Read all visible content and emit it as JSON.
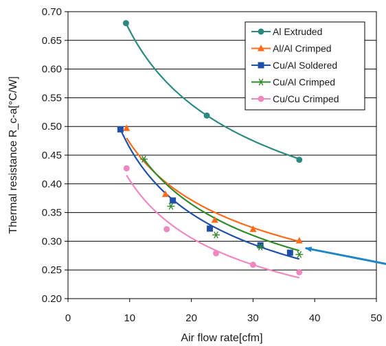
{
  "chart_data": {
    "type": "scatter",
    "xlabel": "Air flow rate[cfm]",
    "ylabel": "Thermal resistance R_c-a[°C/W]",
    "xlim": [
      0,
      50
    ],
    "ylim": [
      0.2,
      0.7
    ],
    "x_ticks": [
      "0",
      "10",
      "20",
      "30",
      "40",
      "50"
    ],
    "y_ticks": [
      "0.20",
      "0.25",
      "0.30",
      "0.35",
      "0.40",
      "0.45",
      "0.50",
      "0.55",
      "0.60",
      "0.65",
      "0.70"
    ],
    "grid": "horizontal",
    "legend_position": "top-right",
    "series": [
      {
        "name": "Al Extruded",
        "color": "#2a8a80",
        "marker": "circle",
        "x": [
          9.4,
          22.5,
          37.5
        ],
        "y": [
          0.68,
          0.519,
          0.442
        ],
        "fit_x": [
          9.4,
          37.5
        ],
        "fit_k": 0.68,
        "fit_b": 0.309
      },
      {
        "name": "Al/Al Crimped",
        "color": "#ff6a18",
        "marker": "triangle",
        "x": [
          9.5,
          15.8,
          23.8,
          30.0,
          37.5
        ],
        "y": [
          0.497,
          0.382,
          0.337,
          0.321,
          0.301
        ],
        "fit_x": [
          9.5,
          37.5
        ],
        "fit_k": 0.48,
        "fit_b": 0.343
      },
      {
        "name": "Cu/Al Soldered",
        "color": "#1f4fa8",
        "marker": "square",
        "x": [
          8.5,
          17.0,
          23.0,
          31.2,
          36.0
        ],
        "y": [
          0.495,
          0.371,
          0.322,
          0.293,
          0.28
        ],
        "fit_x": [
          8.5,
          37.5
        ],
        "fit_k": 0.495,
        "fit_b": 0.411
      },
      {
        "name": "Cu/Al Crimped",
        "color": "#2f8a2a",
        "marker": "star",
        "x": [
          12.3,
          16.7,
          24.0,
          31.2,
          37.5
        ],
        "y": [
          0.443,
          0.361,
          0.311,
          0.29,
          0.277
        ],
        "fit_x": [
          12.3,
          37.5
        ],
        "fit_k": 0.443,
        "fit_b": 0.4
      },
      {
        "name": "Cu/Cu Crimped",
        "color": "#ee88c0",
        "marker": "circle",
        "x": [
          9.5,
          16.0,
          24.0,
          30.0,
          37.5
        ],
        "y": [
          0.427,
          0.321,
          0.279,
          0.259,
          0.246
        ],
        "fit_x": [
          9.5,
          37.5
        ],
        "fit_k": 0.415,
        "fit_b": 0.41
      }
    ],
    "annotation_arrow": {
      "color": "#1e86c8",
      "from": [
        57.5,
        0.248
      ],
      "to": [
        38.5,
        0.288
      ]
    }
  }
}
